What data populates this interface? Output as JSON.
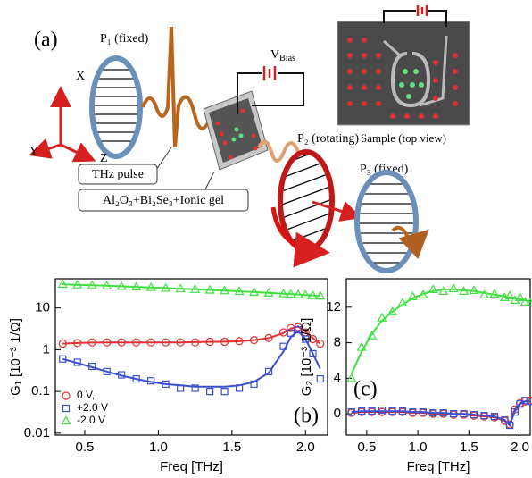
{
  "diagram": {
    "panel_label": "(a)",
    "p1": "P₁ (fixed)",
    "axis_x": "X",
    "axis_y": "Y",
    "axis_z": "Z",
    "thz_pulse": "THz pulse",
    "sample_stack": "Al₂O₃+Bi₂Se₃+Ionic gel",
    "bias": {
      "symbol": "V",
      "subscript": "Bias"
    },
    "p2": "P₂ (rotating)",
    "p3": "P₃ (fixed)",
    "sample_view": "Sample (top view)"
  },
  "chart_data": [
    {
      "type": "scatter",
      "panel_label": "(b)",
      "xlabel": "Freq [THz]",
      "ylabel": "G₁ [10⁻³ 1/Ω]",
      "log_y": true,
      "legend": "lower left",
      "xlim": [
        0.3,
        2.15
      ],
      "xticks": [
        0.5,
        {
          "value": 1,
          "label": "1.0"
        },
        1.5,
        {
          "value": 2,
          "label": "2.0"
        }
      ],
      "ylim": [
        0.009,
        50
      ],
      "yticks": [
        0.01,
        0.1,
        1,
        10
      ],
      "x": [
        0.35,
        0.45,
        0.55,
        0.65,
        0.75,
        0.85,
        0.95,
        1.05,
        1.15,
        1.25,
        1.35,
        1.45,
        1.55,
        1.65,
        1.75,
        1.85,
        1.9,
        1.95,
        2.0,
        2.05,
        2.1
      ],
      "series": [
        {
          "name": "0 V,",
          "color": "#e03030",
          "marker": "circle",
          "values": [
            1.4,
            1.45,
            1.5,
            1.5,
            1.5,
            1.5,
            1.5,
            1.5,
            1.5,
            1.5,
            1.55,
            1.55,
            1.6,
            1.7,
            1.9,
            2.6,
            3.3,
            3.5,
            2.6,
            1.8,
            1.4
          ],
          "fit": [
            1.4,
            1.45,
            1.48,
            1.5,
            1.5,
            1.5,
            1.5,
            1.5,
            1.5,
            1.52,
            1.54,
            1.56,
            1.6,
            1.7,
            1.9,
            2.5,
            3.2,
            3.6,
            2.7,
            1.9,
            1.4
          ]
        },
        {
          "name": "+2.0 V",
          "color": "#3a4fd0",
          "marker": "square",
          "values": [
            0.6,
            0.5,
            0.4,
            0.3,
            0.25,
            0.2,
            0.18,
            0.15,
            0.12,
            0.12,
            0.1,
            0.1,
            0.12,
            0.15,
            0.3,
            1.2,
            2.5,
            3.0,
            1.8,
            0.8,
            0.2
          ],
          "fit": [
            0.6,
            0.48,
            0.38,
            0.3,
            0.24,
            0.2,
            0.17,
            0.15,
            0.14,
            0.13,
            0.13,
            0.13,
            0.14,
            0.17,
            0.28,
            0.9,
            2.0,
            2.8,
            1.8,
            0.8,
            0.35
          ]
        },
        {
          "name": "-2.0 V",
          "color": "#40e040",
          "marker": "triangle",
          "values": [
            37,
            36,
            35,
            34,
            33,
            32,
            31,
            30,
            29,
            28,
            27,
            26,
            25,
            24,
            23,
            22,
            21.5,
            21,
            20.5,
            20,
            19.5
          ],
          "fit": [
            37,
            36,
            35,
            34,
            33,
            32,
            31,
            30,
            29,
            28,
            27,
            26,
            25,
            24,
            23,
            22,
            21.5,
            21,
            20.5,
            20,
            19.5
          ]
        }
      ]
    },
    {
      "type": "scatter",
      "panel_label": "(c)",
      "xlabel": "Freq [THz]",
      "ylabel": "G₂ [10⁻³ 1/Ω]",
      "log_y": false,
      "xlim": [
        0.3,
        2.1
      ],
      "xticks": [
        0.5,
        {
          "value": 1,
          "label": "1.0"
        },
        1.5,
        {
          "value": 2,
          "label": "2.0"
        }
      ],
      "ylim": [
        -2.4,
        15.2
      ],
      "yticks": [
        0,
        4,
        8,
        12
      ],
      "x": [
        0.35,
        0.45,
        0.55,
        0.65,
        0.75,
        0.85,
        0.95,
        1.05,
        1.15,
        1.25,
        1.35,
        1.45,
        1.55,
        1.65,
        1.75,
        1.85,
        1.9,
        1.95,
        2.0,
        2.05,
        2.1
      ],
      "series": [
        {
          "color": "#e03030",
          "marker": "circle",
          "values": [
            0.1,
            0.2,
            0.2,
            0.2,
            0.2,
            0.2,
            0.1,
            0.1,
            0,
            0,
            -0.1,
            -0.1,
            -0.2,
            -0.3,
            -0.4,
            -0.8,
            -1.2,
            0.5,
            1.2,
            1.4,
            1.5
          ],
          "fit": [
            0.1,
            0.2,
            0.2,
            0.2,
            0.2,
            0.2,
            0.1,
            0.1,
            0,
            0,
            -0.1,
            -0.1,
            -0.2,
            -0.3,
            -0.4,
            -0.8,
            -1.2,
            0.5,
            1.2,
            1.4,
            1.5
          ]
        },
        {
          "color": "#3a4fd0",
          "marker": "square",
          "values": [
            0.2,
            0.3,
            0.3,
            0.4,
            0.3,
            0.3,
            0.2,
            0.2,
            0.1,
            0.1,
            0,
            0,
            -0.1,
            -0.2,
            -0.3,
            -0.7,
            -1.3,
            0.2,
            1.1,
            1.5,
            1.4
          ],
          "fit": [
            0.2,
            0.3,
            0.3,
            0.3,
            0.3,
            0.3,
            0.2,
            0.2,
            0.1,
            0.1,
            0,
            0,
            -0.1,
            -0.2,
            -0.3,
            -0.7,
            -1.3,
            0.3,
            1.1,
            1.4,
            1.4
          ]
        },
        {
          "color": "#40e040",
          "marker": "triangle",
          "values": [
            4,
            7.5,
            8.8,
            10.8,
            11.5,
            12.5,
            13.2,
            13.4,
            14,
            13.8,
            14.1,
            13.8,
            13.9,
            13.4,
            13.5,
            13.1,
            13.3,
            12.8,
            13.1,
            12.6,
            12.5
          ],
          "fit": [
            4.5,
            7,
            9,
            10.5,
            11.5,
            12.3,
            13,
            13.5,
            13.8,
            14,
            14,
            13.9,
            13.8,
            13.6,
            13.4,
            13.2,
            13.1,
            13,
            12.9,
            12.8,
            12.6
          ]
        }
      ]
    }
  ]
}
